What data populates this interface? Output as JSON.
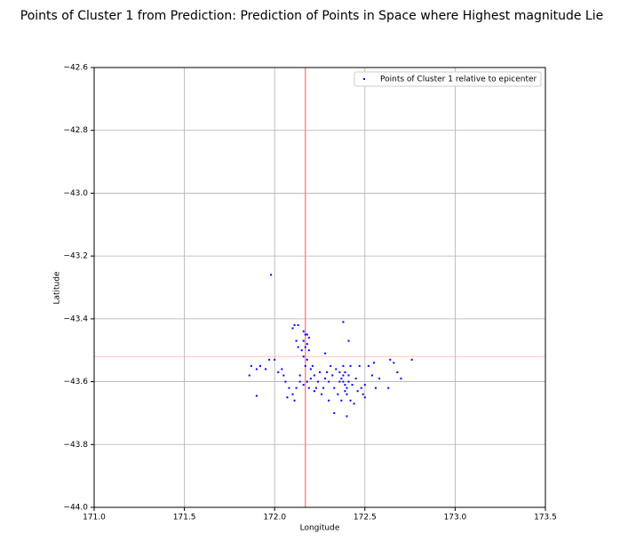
{
  "chart_data": {
    "type": "scatter",
    "title": "Points of Cluster 1 from Prediction: Prediction of Points in Space where Highest magnitude Lie",
    "x_label": "Longitude",
    "y_label": "Latitude",
    "xlim": [
      171.0,
      173.5
    ],
    "ylim": [
      -44.0,
      -42.6
    ],
    "xticks": [
      {
        "value": 171.0,
        "label": "171.0"
      },
      171.5,
      {
        "value": 172.0,
        "label": "172.0"
      },
      172.5,
      {
        "value": 173.0,
        "label": "173.0"
      },
      173.5
    ],
    "yticks": [
      {
        "value": -42.6,
        "label": "−42.6"
      },
      {
        "value": -42.8,
        "label": "−42.8"
      },
      {
        "value": -43.0,
        "label": "−43.0"
      },
      {
        "value": -43.2,
        "label": "−43.2"
      },
      {
        "value": -43.4,
        "label": "−43.4"
      },
      {
        "value": -43.6,
        "label": "−43.6"
      },
      {
        "value": -43.8,
        "label": "−43.8"
      },
      {
        "value": -44.0,
        "label": "−44.0"
      }
    ],
    "grid": true,
    "legend": "upper right",
    "reference_lines": {
      "x": 172.17,
      "y": -43.52,
      "color": "#ff8a8a"
    },
    "series": [
      {
        "name": "Points of Cluster 1 relative to epicenter",
        "color": "#0000ff",
        "x": [
          171.98,
          172.38,
          172.41,
          172.11,
          172.13,
          172.1,
          172.16,
          172.17,
          172.18,
          172.19,
          172.16,
          172.18,
          172.17,
          172.19,
          172.15,
          172.12,
          172.13,
          172.16,
          172.18,
          172.17,
          172.2,
          172.22,
          172.25,
          172.28,
          172.3,
          172.32,
          172.34,
          172.36,
          172.37,
          172.38,
          172.39,
          172.4,
          172.41,
          172.42,
          172.38,
          172.4,
          172.42,
          172.44,
          172.46,
          172.48,
          172.5,
          172.49,
          172.47,
          172.52,
          172.55,
          172.54,
          172.56,
          172.58,
          172.64,
          172.66,
          172.68,
          172.7,
          172.76,
          172.63,
          172.5,
          172.4,
          172.33,
          172.3,
          172.26,
          172.22,
          172.19,
          172.16,
          172.14,
          172.12,
          172.1,
          172.08,
          172.06,
          172.05,
          172.04,
          172.02,
          172.0,
          171.97,
          171.95,
          171.92,
          171.9,
          171.87,
          171.86,
          171.9,
          172.07,
          172.11,
          172.14,
          172.2,
          172.24,
          172.27,
          172.29,
          172.31,
          172.33,
          172.35,
          172.37,
          172.39,
          172.41,
          172.43,
          172.45,
          172.36,
          172.38,
          172.39,
          172.28,
          172.21,
          172.23,
          172.18
        ],
        "y": [
          -43.26,
          -43.41,
          -43.47,
          -43.42,
          -43.42,
          -43.43,
          -43.44,
          -43.45,
          -43.45,
          -43.46,
          -43.47,
          -43.48,
          -43.49,
          -43.5,
          -43.5,
          -43.47,
          -43.49,
          -43.52,
          -43.53,
          -43.55,
          -43.56,
          -43.58,
          -43.57,
          -43.59,
          -43.6,
          -43.58,
          -43.56,
          -43.57,
          -43.59,
          -43.6,
          -43.61,
          -43.62,
          -43.58,
          -43.55,
          -43.55,
          -43.64,
          -43.66,
          -43.67,
          -43.63,
          -43.62,
          -43.61,
          -43.64,
          -43.55,
          -43.55,
          -43.54,
          -43.58,
          -43.62,
          -43.59,
          -43.53,
          -43.54,
          -43.57,
          -43.59,
          -43.53,
          -43.62,
          -43.65,
          -43.71,
          -43.7,
          -43.66,
          -43.64,
          -43.63,
          -43.62,
          -43.61,
          -43.6,
          -43.62,
          -43.64,
          -43.62,
          -43.6,
          -43.58,
          -43.56,
          -43.57,
          -43.53,
          -43.53,
          -43.56,
          -43.55,
          -43.56,
          -43.55,
          -43.58,
          -43.645,
          -43.65,
          -43.66,
          -43.58,
          -43.59,
          -43.6,
          -43.62,
          -43.57,
          -43.55,
          -43.62,
          -43.64,
          -43.66,
          -43.57,
          -43.6,
          -43.61,
          -43.59,
          -43.6,
          -43.58,
          -43.63,
          -43.51,
          -43.55,
          -43.62,
          -43.6
        ]
      }
    ]
  }
}
